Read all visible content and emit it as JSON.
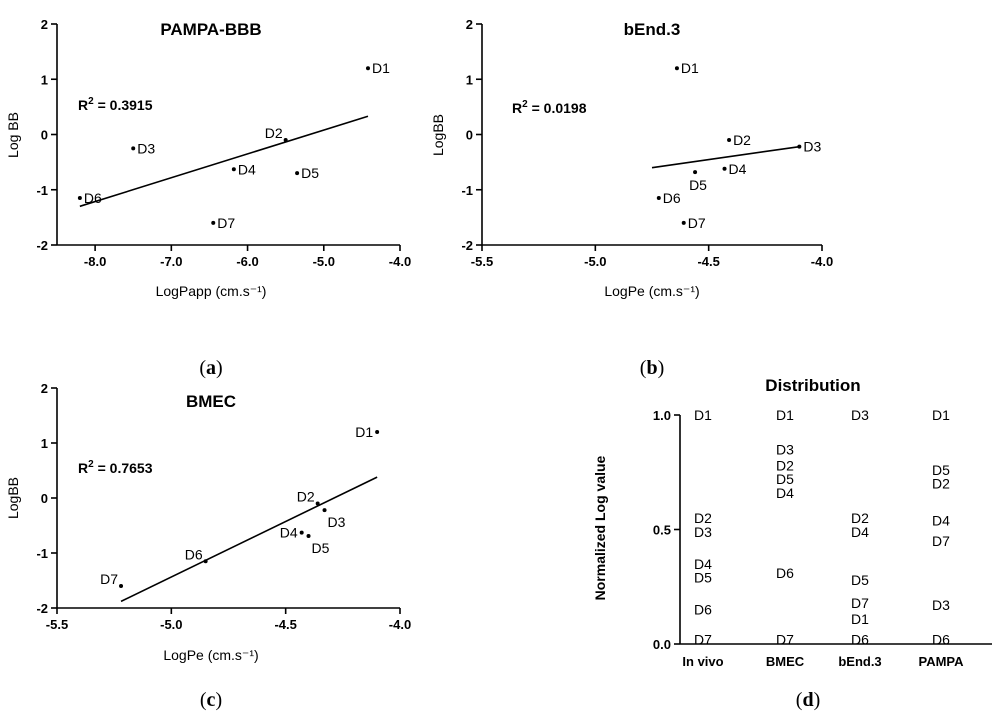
{
  "chart_data": [
    {
      "panel": "a",
      "type": "scatter",
      "title": "PAMPA-BBB",
      "xlabel": "LogPapp (cm.s⁻¹)",
      "ylabel": "Log BB",
      "xlim": [
        -8.5,
        -4.0
      ],
      "ylim": [
        -2,
        2
      ],
      "xticks": [
        -8.0,
        -7.0,
        -6.0,
        -5.0,
        -4.0
      ],
      "xtick_labels": [
        "-8.0",
        "-7.0",
        "-6.0",
        "-5.0",
        "-4.0"
      ],
      "yticks": [
        -2,
        -1,
        0,
        1,
        2
      ],
      "ytick_labels": [
        "-2",
        "-1",
        "0",
        "1",
        "2"
      ],
      "r2_label": "0.3915",
      "fit": {
        "x": [
          -8.2,
          -4.42
        ],
        "y": [
          -1.3,
          0.33
        ]
      },
      "points": [
        {
          "label": "D1",
          "x": -4.42,
          "y": 1.2,
          "pos": "right"
        },
        {
          "label": "D2",
          "x": -5.5,
          "y": -0.1,
          "pos": "aboveleft"
        },
        {
          "label": "D3",
          "x": -7.5,
          "y": -0.25,
          "pos": "right"
        },
        {
          "label": "D4",
          "x": -6.18,
          "y": -0.63,
          "pos": "right"
        },
        {
          "label": "D5",
          "x": -5.35,
          "y": -0.7,
          "pos": "right"
        },
        {
          "label": "D6",
          "x": -8.2,
          "y": -1.15,
          "pos": "right"
        },
        {
          "label": "D7",
          "x": -6.45,
          "y": -1.6,
          "pos": "right"
        }
      ]
    },
    {
      "panel": "b",
      "type": "scatter",
      "title": "bEnd.3",
      "xlabel": "LogPe (cm.s⁻¹)",
      "ylabel": "LogBB",
      "xlim": [
        -5.5,
        -4.0
      ],
      "ylim": [
        -2,
        2
      ],
      "xticks": [
        -5.5,
        -5.0,
        -4.5,
        -4.0
      ],
      "xtick_labels": [
        "-5.5",
        "-5.0",
        "-4.5",
        "-4.0"
      ],
      "yticks": [
        -2,
        -1,
        0,
        1,
        2
      ],
      "ytick_labels": [
        "-2",
        "-1",
        "0",
        "1",
        "2"
      ],
      "r2_label": "0.0198",
      "fit": {
        "x": [
          -4.75,
          -4.1
        ],
        "y": [
          -0.6,
          -0.22
        ]
      },
      "points": [
        {
          "label": "D1",
          "x": -4.64,
          "y": 1.2,
          "pos": "right"
        },
        {
          "label": "D2",
          "x": -4.41,
          "y": -0.1,
          "pos": "right"
        },
        {
          "label": "D3",
          "x": -4.1,
          "y": -0.22,
          "pos": "right"
        },
        {
          "label": "D4",
          "x": -4.43,
          "y": -0.62,
          "pos": "right"
        },
        {
          "label": "D5",
          "x": -4.56,
          "y": -0.68,
          "pos": "below"
        },
        {
          "label": "D6",
          "x": -4.72,
          "y": -1.15,
          "pos": "right"
        },
        {
          "label": "D7",
          "x": -4.61,
          "y": -1.6,
          "pos": "right"
        }
      ]
    },
    {
      "panel": "c",
      "type": "scatter",
      "title": "BMEC",
      "xlabel": "LogPe (cm.s⁻¹)",
      "ylabel": "LogBB",
      "xlim": [
        -5.5,
        -4.0
      ],
      "ylim": [
        -2,
        2
      ],
      "xticks": [
        -5.5,
        -5.0,
        -4.5,
        -4.0
      ],
      "xtick_labels": [
        "-5.5",
        "-5.0",
        "-4.5",
        "-4.0"
      ],
      "yticks": [
        -2,
        -1,
        0,
        1,
        2
      ],
      "ytick_labels": [
        "-2",
        "-1",
        "0",
        "1",
        "2"
      ],
      "r2_label": "0.7653",
      "fit": {
        "x": [
          -5.22,
          -4.1
        ],
        "y": [
          -1.88,
          0.38
        ]
      },
      "points": [
        {
          "label": "D1",
          "x": -4.1,
          "y": 1.2,
          "pos": "left"
        },
        {
          "label": "D2",
          "x": -4.36,
          "y": -0.1,
          "pos": "aboveleft"
        },
        {
          "label": "D3",
          "x": -4.33,
          "y": -0.22,
          "pos": "belowright"
        },
        {
          "label": "D4",
          "x": -4.43,
          "y": -0.63,
          "pos": "left"
        },
        {
          "label": "D5",
          "x": -4.4,
          "y": -0.69,
          "pos": "belowright"
        },
        {
          "label": "D6",
          "x": -4.85,
          "y": -1.15,
          "pos": "aboveleft"
        },
        {
          "label": "D7",
          "x": -5.22,
          "y": -1.6,
          "pos": "aboveleft"
        }
      ]
    },
    {
      "panel": "d",
      "type": "table",
      "title": "Distribution",
      "ylabel": "Normalized Log value",
      "ylim": [
        0,
        1
      ],
      "yticks": [
        0,
        0.5,
        1
      ],
      "ytick_labels": [
        "0.0",
        "0.5",
        "1.0"
      ],
      "categories": [
        "In vivo",
        "BMEC",
        "bEnd.3",
        "PAMPA"
      ],
      "columns": [
        [
          {
            "label": "D1",
            "y": 1.0
          },
          {
            "label": "D2",
            "y": 0.55
          },
          {
            "label": "D3",
            "y": 0.49
          },
          {
            "label": "D4",
            "y": 0.35
          },
          {
            "label": "D5",
            "y": 0.29
          },
          {
            "label": "D6",
            "y": 0.15
          },
          {
            "label": "D7",
            "y": 0.02
          }
        ],
        [
          {
            "label": "D1",
            "y": 1.0
          },
          {
            "label": "D3",
            "y": 0.85
          },
          {
            "label": "D2",
            "y": 0.78
          },
          {
            "label": "D5",
            "y": 0.72
          },
          {
            "label": "D4",
            "y": 0.66
          },
          {
            "label": "D6",
            "y": 0.31
          },
          {
            "label": "D7",
            "y": 0.02
          }
        ],
        [
          {
            "label": "D3",
            "y": 1.0
          },
          {
            "label": "D2",
            "y": 0.55
          },
          {
            "label": "D4",
            "y": 0.49
          },
          {
            "label": "D5",
            "y": 0.28
          },
          {
            "label": "D7",
            "y": 0.18
          },
          {
            "label": "D1",
            "y": 0.11
          },
          {
            "label": "D6",
            "y": 0.02
          }
        ],
        [
          {
            "label": "D1",
            "y": 1.0
          },
          {
            "label": "D5",
            "y": 0.76
          },
          {
            "label": "D2",
            "y": 0.7
          },
          {
            "label": "D4",
            "y": 0.54
          },
          {
            "label": "D7",
            "y": 0.45
          },
          {
            "label": "D3",
            "y": 0.17
          },
          {
            "label": "D6",
            "y": 0.02
          }
        ]
      ]
    }
  ],
  "captions": [
    {
      "open": "(",
      "letter": "a",
      "close": ")"
    },
    {
      "open": "(",
      "letter": "b",
      "close": ")"
    },
    {
      "open": "(",
      "letter": "c",
      "close": ")"
    },
    {
      "open": "(",
      "letter": "d",
      "close": ")"
    }
  ]
}
